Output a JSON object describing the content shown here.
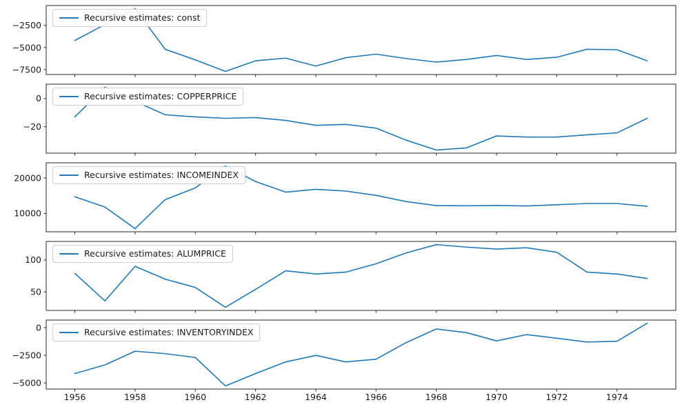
{
  "figure": {
    "background_color": "#ffffff",
    "axis_edge_color": "#262626",
    "tick_label_color": "#1a1a1a"
  },
  "chart_data": {
    "type": "line",
    "line_color": "#1f77b4",
    "grid": "off",
    "legend_position": "upper-left-each-subplot",
    "x": [
      1956,
      1957,
      1958,
      1959,
      1960,
      1961,
      1962,
      1963,
      1964,
      1965,
      1966,
      1967,
      1968,
      1969,
      1970,
      1971,
      1972,
      1973,
      1974,
      1975
    ],
    "xlim": [
      1955.05,
      1975.95
    ],
    "x_ticks": {
      "values": [
        1956,
        1958,
        1960,
        1962,
        1964,
        1966,
        1968,
        1970,
        1972,
        1974
      ],
      "labels": [
        "1956",
        "1958",
        "1960",
        "1962",
        "1964",
        "1966",
        "1968",
        "1970",
        "1972",
        "1974"
      ]
    },
    "series": [
      {
        "name": "const",
        "legend": "Recursive estimates: const",
        "ylim": [
          -8055,
          -245
        ],
        "y_ticks": [
          {
            "v": -2500,
            "label": "−2500"
          },
          {
            "v": -5000,
            "label": "−5000"
          },
          {
            "v": -7500,
            "label": "−7500"
          }
        ],
        "values": [
          -4200,
          -2400,
          -600,
          -5200,
          -6400,
          -7700,
          -6500,
          -6200,
          -7100,
          -6150,
          -5750,
          -6250,
          -6650,
          -6350,
          -5900,
          -6350,
          -6100,
          -5200,
          -5250,
          -6500
        ]
      },
      {
        "name": "COPPERPRICE",
        "legend": "Recursive estimates: COPPERPRICE",
        "ylim": [
          -38.7,
          10.2
        ],
        "y_ticks": [
          {
            "v": 0,
            "label": "0"
          },
          {
            "v": -20,
            "label": "−20"
          }
        ],
        "values": [
          -13,
          8,
          -2,
          -11.5,
          -13,
          -14,
          -13.5,
          -15.5,
          -19,
          -18.3,
          -21,
          -29.5,
          -36.5,
          -35,
          -26.5,
          -27.3,
          -27.3,
          -25.7,
          -24.3,
          -14
        ]
      },
      {
        "name": "INCOMEINDEX",
        "legend": "Recursive estimates: INCOMEINDEX",
        "ylim": [
          4815,
          24285
        ],
        "y_ticks": [
          {
            "v": 20000,
            "label": "20000"
          },
          {
            "v": 10000,
            "label": "10000"
          }
        ],
        "values": [
          14700,
          11800,
          5700,
          13900,
          17200,
          23400,
          19000,
          16000,
          16800,
          16300,
          15100,
          13350,
          12200,
          12150,
          12250,
          12100,
          12450,
          12800,
          12800,
          12000
        ]
      },
      {
        "name": "ALUMPRICE",
        "legend": "Recursive estimates: ALUMPRICE",
        "ylim": [
          21.1,
          128.9
        ],
        "y_ticks": [
          {
            "v": 100,
            "label": "100"
          },
          {
            "v": 50,
            "label": "50"
          }
        ],
        "values": [
          79,
          36,
          90,
          70,
          57,
          26,
          54,
          83,
          78,
          81,
          94,
          111,
          124,
          120,
          117,
          119,
          112,
          81,
          78,
          71
        ]
      },
      {
        "name": "INVENTORYINDEX",
        "legend": "Recursive estimates: INVENTORYINDEX",
        "ylim": [
          -5553,
          683
        ],
        "y_ticks": [
          {
            "v": 0,
            "label": "0"
          },
          {
            "v": -2500,
            "label": "−2500"
          },
          {
            "v": -5000,
            "label": "−5000"
          }
        ],
        "values": [
          -4150,
          -3370,
          -2130,
          -2350,
          -2700,
          -5270,
          -4150,
          -3100,
          -2510,
          -3100,
          -2850,
          -1350,
          -120,
          -450,
          -1200,
          -630,
          -960,
          -1300,
          -1230,
          400
        ]
      }
    ]
  }
}
